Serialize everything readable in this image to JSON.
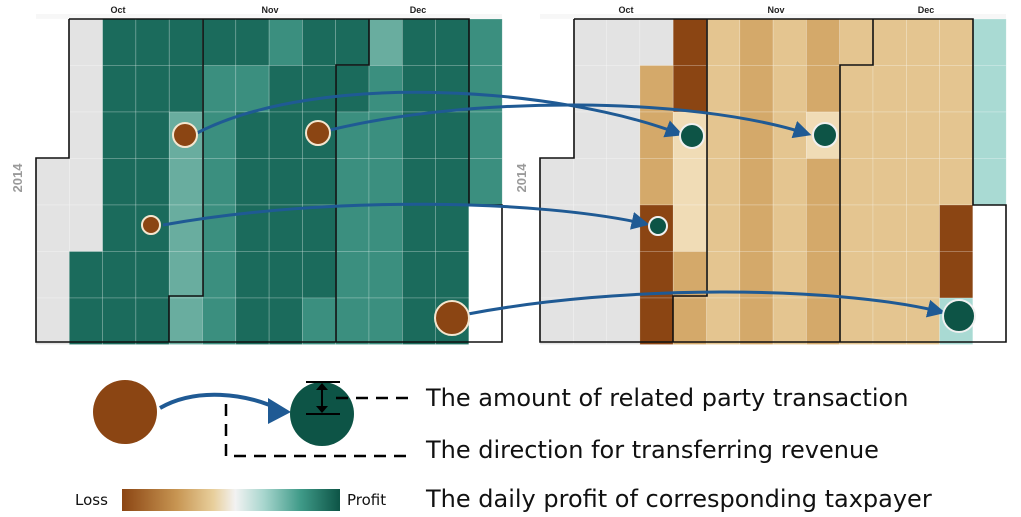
{
  "calendars": [
    {
      "id": "left",
      "year": "2014",
      "months": [
        "Oct",
        "Nov",
        "Dec"
      ],
      "colors": {
        "gray": "#e3e3e3",
        "dark_teal": "#1b6b5c",
        "mid_teal": "#3b8f7f",
        "light_teal": "#69ad9f",
        "pale_teal": "#9ccfc4"
      },
      "cells": [
        "GGTTTTTTTTTTTT",
        "GGTTTTMTTTTTTT",
        "GGTTTTMTTTTTTT",
        "GGTTTTMTTTTTTT",
        "GGTTTTMTTTTTTT",
        "GGTTTTMTTTTTTT",
        "GGTTTTMTTTTTTT",
        "GGTTTTMTTTTTTT"
      ]
    },
    {
      "id": "right",
      "year": "2014",
      "months": [
        "Oct",
        "Nov",
        "Dec"
      ],
      "colors": {
        "gray": "#e3e3e3",
        "dark_brown": "#8b4513",
        "tan": "#d4a96a",
        "light_tan": "#e4c590",
        "pale_tan": "#f0dcb6",
        "pale_teal": "#a9dad3"
      }
    }
  ],
  "legend": {
    "amount_text": "The amount of related party transaction",
    "direction_text": "The direction for transferring revenue",
    "profit_text": "The daily profit of corresponding taxpayer",
    "loss_label": "Loss",
    "profit_label": "Profit",
    "colors": {
      "loss_circle": "#8b4513",
      "profit_circle": "#0d5446",
      "arrow": "#1f5a94"
    },
    "scale_stops": [
      "#8b4513",
      "#c79552",
      "#e8cf9c",
      "#f2f2f2",
      "#a8d6ce",
      "#3f9a88",
      "#0d5446"
    ]
  }
}
